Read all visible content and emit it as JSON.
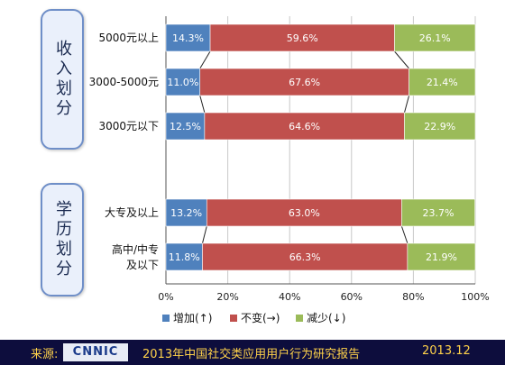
{
  "colors": {
    "increase": "#4f81bd",
    "unchanged": "#c0504d",
    "decrease": "#9bbb59"
  },
  "groups": [
    {
      "label": "收入划分"
    },
    {
      "label": "学历划分"
    }
  ],
  "chart_data": {
    "type": "bar",
    "orientation": "horizontal",
    "stacked": true,
    "categories": [
      "5000元以上",
      "3000-5000元",
      "3000元以下",
      "大专及以上",
      "高中/中专及以下"
    ],
    "series": [
      {
        "name": "增加(↑)",
        "values": [
          14.3,
          11.0,
          12.5,
          13.2,
          11.8
        ]
      },
      {
        "name": "不变(→)",
        "values": [
          59.6,
          67.6,
          64.6,
          63.0,
          66.3
        ]
      },
      {
        "name": "减少(↓)",
        "values": [
          26.1,
          21.4,
          22.9,
          23.7,
          21.9
        ]
      }
    ],
    "xlim": [
      0,
      100
    ],
    "x_ticks": [
      "0%",
      "20%",
      "40%",
      "60%",
      "80%",
      "100%"
    ],
    "legend_position": "bottom",
    "grid": true
  },
  "footer": {
    "source_label": "来源:",
    "logo_text": "CNNIC",
    "report_title": "2013年中国社交类应用用户行为研究报告",
    "date": "2013.12"
  }
}
